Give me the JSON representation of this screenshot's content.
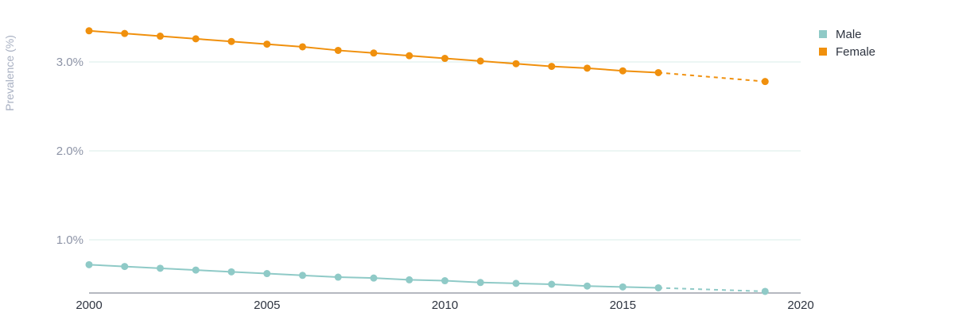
{
  "chart_data": {
    "type": "line",
    "title": "",
    "xlabel": "",
    "ylabel": "Prevalence (%)",
    "xlim": [
      2000,
      2020
    ],
    "ylim": [
      0.4,
      3.5
    ],
    "x_ticks": [
      2000,
      2005,
      2010,
      2015,
      2020
    ],
    "x_tick_labels": [
      "2000",
      "2005",
      "2010",
      "2015",
      "2020"
    ],
    "y_ticks": [
      1.0,
      2.0,
      3.0
    ],
    "y_tick_labels": [
      "1.0%",
      "2.0%",
      "3.0%"
    ],
    "grid": "horizontal",
    "legend_position": "top-right",
    "series": [
      {
        "name": "Male",
        "color": "#8fcac7",
        "x": [
          2000,
          2001,
          2002,
          2003,
          2004,
          2005,
          2006,
          2007,
          2008,
          2009,
          2010,
          2011,
          2012,
          2013,
          2014,
          2015,
          2016,
          2019
        ],
        "values": [
          0.72,
          0.7,
          0.68,
          0.66,
          0.64,
          0.62,
          0.6,
          0.58,
          0.57,
          0.55,
          0.54,
          0.52,
          0.51,
          0.5,
          0.48,
          0.47,
          0.46,
          0.42
        ],
        "projected_from_index": 16
      },
      {
        "name": "Female",
        "color": "#f0900d",
        "x": [
          2000,
          2001,
          2002,
          2003,
          2004,
          2005,
          2006,
          2007,
          2008,
          2009,
          2010,
          2011,
          2012,
          2013,
          2014,
          2015,
          2016,
          2019
        ],
        "values": [
          3.35,
          3.32,
          3.29,
          3.26,
          3.23,
          3.2,
          3.17,
          3.13,
          3.1,
          3.07,
          3.04,
          3.01,
          2.98,
          2.95,
          2.93,
          2.9,
          2.88,
          2.78
        ],
        "projected_from_index": 16
      }
    ]
  },
  "colors": {
    "grid": "#d8ede9",
    "axis": "#6b7280"
  }
}
